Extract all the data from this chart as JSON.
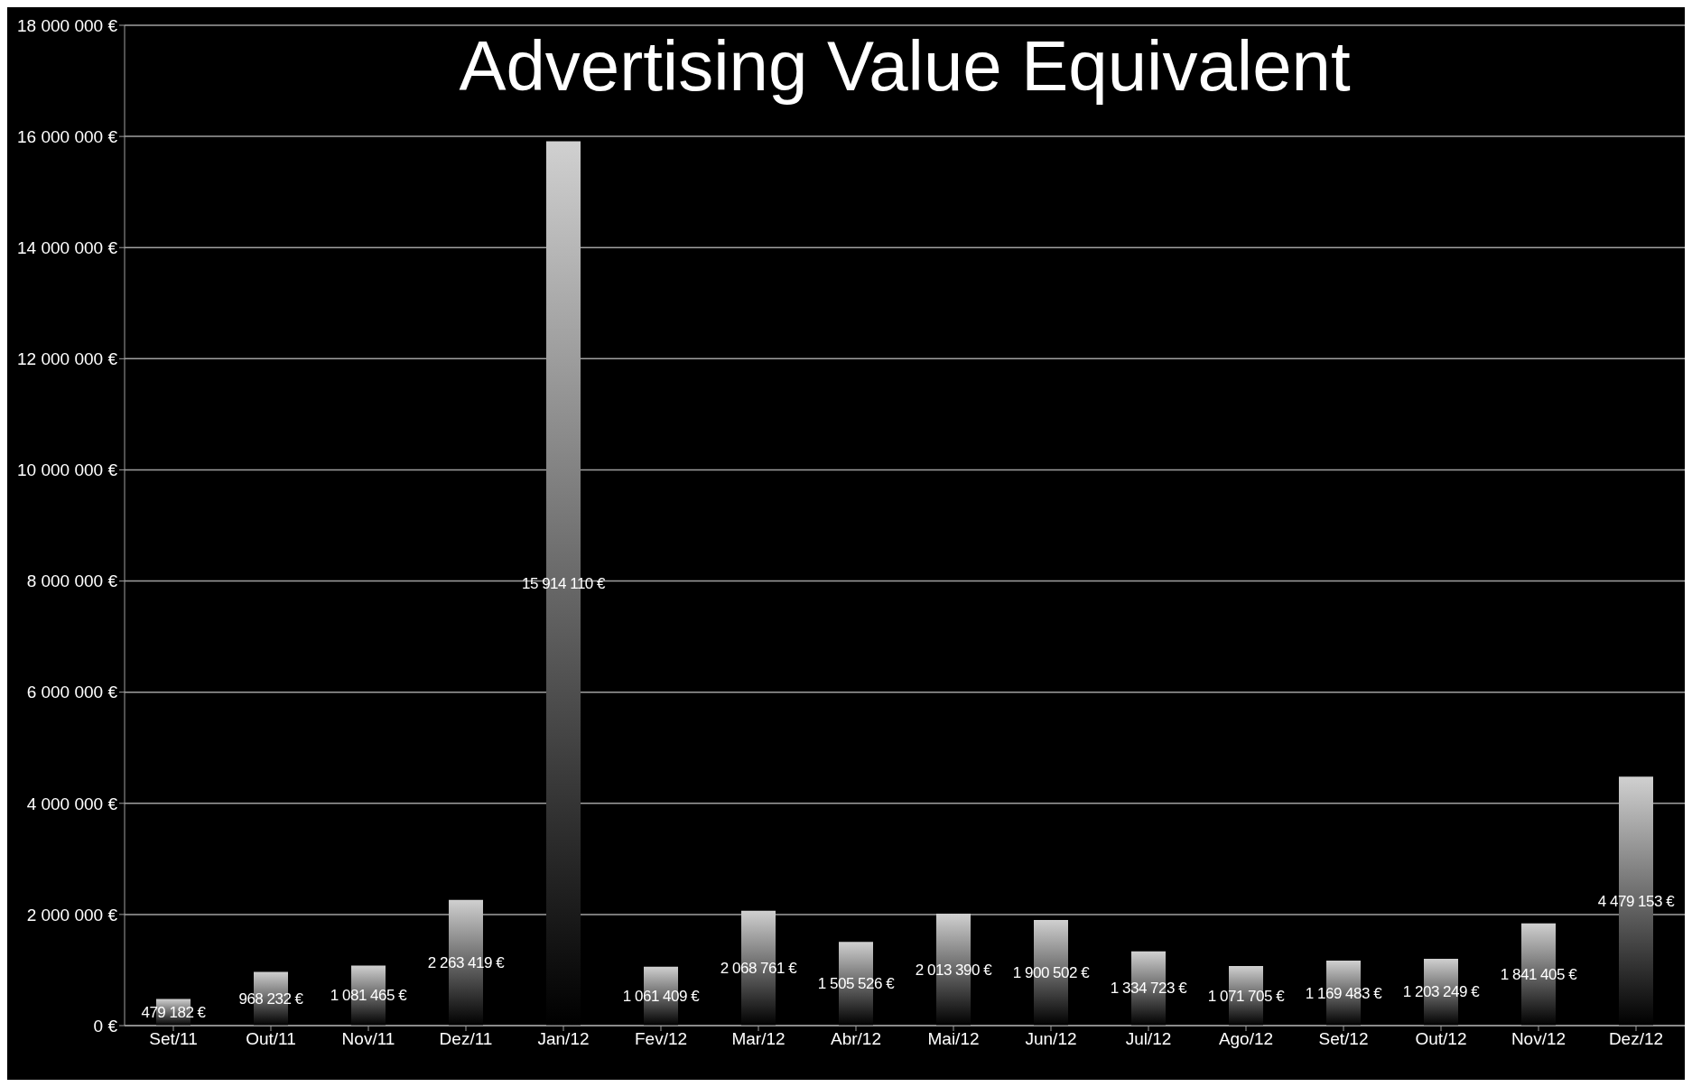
{
  "chart_data": {
    "type": "bar",
    "title": "Advertising Value Equivalent",
    "categories": [
      "Set/11",
      "Out/11",
      "Nov/11",
      "Dez/11",
      "Jan/12",
      "Fev/12",
      "Mar/12",
      "Abr/12",
      "Mai/12",
      "Jun/12",
      "Jul/12",
      "Ago/12",
      "Set/12",
      "Out/12",
      "Nov/12",
      "Dez/12"
    ],
    "values": [
      479182,
      968232,
      1081465,
      2263419,
      15914110,
      1061409,
      2068761,
      1505526,
      2013390,
      1900502,
      1334723,
      1071705,
      1169483,
      1203249,
      1841405,
      4479153
    ],
    "value_labels": [
      "479 182 €",
      "968 232 €",
      "1 081 465 €",
      "2 263 419 €",
      "15 914 110 €",
      "1 061 409 €",
      "2 068 761 €",
      "1 505 526 €",
      "2 013 390 €",
      "1 900 502 €",
      "1 334 723 €",
      "1 071 705 €",
      "1 169 483 €",
      "1 203 249 €",
      "1 841 405 €",
      "4 479 153 €"
    ],
    "color": "#d0d0d0",
    "ylim": [
      0,
      18000000
    ],
    "yticks": [
      {
        "value": 0,
        "label": "0 €"
      },
      {
        "value": 2000000,
        "label": "2 000 000 €"
      },
      {
        "value": 4000000,
        "label": "4 000 000 €"
      },
      {
        "value": 6000000,
        "label": "6 000 000 €"
      },
      {
        "value": 8000000,
        "label": "8 000 000 €"
      },
      {
        "value": 10000000,
        "label": "10 000 000 €"
      },
      {
        "value": 12000000,
        "label": "12 000 000 €"
      },
      {
        "value": 14000000,
        "label": "14 000 000 €"
      },
      {
        "value": 16000000,
        "label": "16 000 000 €"
      },
      {
        "value": 18000000,
        "label": "18 000 000 €"
      }
    ],
    "grid": "y"
  }
}
